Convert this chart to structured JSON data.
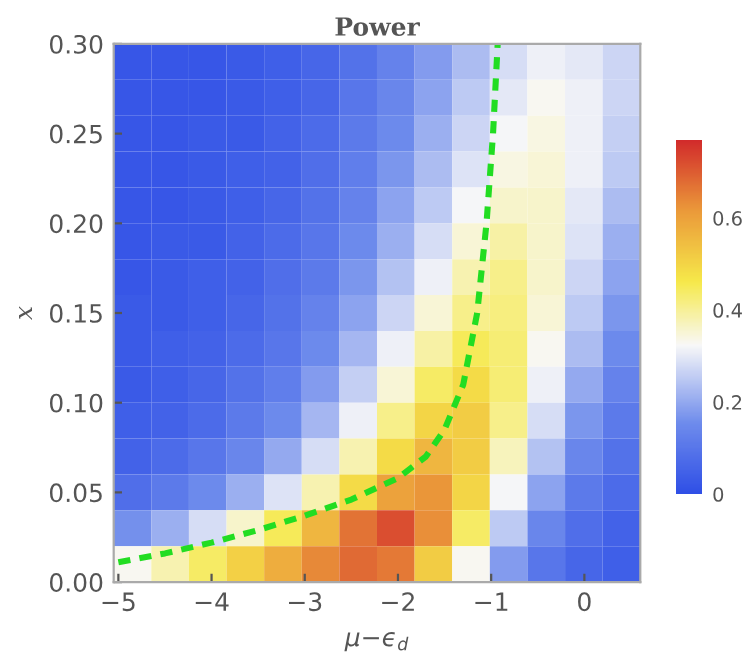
{
  "chart_data": {
    "type": "heatmap",
    "title": "Power",
    "xlabel": "μ−ϵ$_{d}$",
    "ylabel": "x",
    "xlim": [
      -5.05,
      0.6
    ],
    "ylim": [
      0,
      0.3
    ],
    "xticks": [
      {
        "value": -5,
        "label": "−5"
      },
      {
        "value": -4,
        "label": "−4"
      },
      {
        "value": -3,
        "label": "−3"
      },
      {
        "value": -2,
        "label": "−2"
      },
      {
        "value": -1,
        "label": "−1"
      },
      0
    ],
    "yticks": [
      {
        "value": 0,
        "label": "0.00"
      },
      {
        "value": 0.05,
        "label": "0.05"
      },
      {
        "value": 0.1,
        "label": "0.10"
      },
      {
        "value": 0.15,
        "label": "0.15"
      },
      {
        "value": 0.2,
        "label": "0.20"
      },
      {
        "value": 0.25,
        "label": "0.25"
      },
      {
        "value": 0.3,
        "label": "0.30"
      }
    ],
    "clim": [
      0,
      0.77
    ],
    "cticks": [
      0,
      0.2,
      0.4,
      0.6
    ],
    "cells": [
      [
        0.02,
        0.02,
        0.02,
        0.03,
        0.04,
        0.06,
        0.09,
        0.13,
        0.18,
        0.23,
        0.28,
        0.31,
        0.3,
        0.27
      ],
      [
        0.02,
        0.02,
        0.02,
        0.03,
        0.04,
        0.06,
        0.1,
        0.14,
        0.19,
        0.25,
        0.3,
        0.33,
        0.31,
        0.27
      ],
      [
        0.02,
        0.02,
        0.03,
        0.03,
        0.05,
        0.07,
        0.11,
        0.15,
        0.21,
        0.27,
        0.32,
        0.34,
        0.31,
        0.26
      ],
      [
        0.02,
        0.02,
        0.03,
        0.04,
        0.05,
        0.08,
        0.12,
        0.17,
        0.23,
        0.29,
        0.34,
        0.35,
        0.31,
        0.25
      ],
      [
        0.02,
        0.02,
        0.03,
        0.04,
        0.06,
        0.09,
        0.13,
        0.19,
        0.25,
        0.32,
        0.36,
        0.36,
        0.3,
        0.23
      ],
      [
        0.02,
        0.03,
        0.03,
        0.05,
        0.07,
        0.1,
        0.15,
        0.21,
        0.28,
        0.35,
        0.39,
        0.36,
        0.29,
        0.21
      ],
      [
        0.02,
        0.03,
        0.04,
        0.05,
        0.08,
        0.11,
        0.17,
        0.24,
        0.31,
        0.38,
        0.41,
        0.36,
        0.27,
        0.19
      ],
      [
        0.03,
        0.03,
        0.04,
        0.06,
        0.09,
        0.13,
        0.19,
        0.27,
        0.35,
        0.41,
        0.42,
        0.35,
        0.25,
        0.17
      ],
      [
        0.03,
        0.04,
        0.05,
        0.07,
        0.1,
        0.15,
        0.22,
        0.31,
        0.39,
        0.45,
        0.43,
        0.33,
        0.23,
        0.15
      ],
      [
        0.03,
        0.04,
        0.06,
        0.09,
        0.12,
        0.18,
        0.26,
        0.35,
        0.44,
        0.49,
        0.43,
        0.31,
        0.2,
        0.13
      ],
      [
        0.04,
        0.05,
        0.07,
        0.11,
        0.15,
        0.22,
        0.31,
        0.41,
        0.5,
        0.52,
        0.41,
        0.28,
        0.17,
        0.11
      ],
      [
        0.05,
        0.07,
        0.1,
        0.14,
        0.2,
        0.28,
        0.38,
        0.49,
        0.56,
        0.52,
        0.37,
        0.24,
        0.14,
        0.09
      ],
      [
        0.08,
        0.11,
        0.15,
        0.21,
        0.29,
        0.38,
        0.49,
        0.6,
        0.62,
        0.5,
        0.32,
        0.19,
        0.11,
        0.07
      ],
      [
        0.16,
        0.21,
        0.28,
        0.36,
        0.45,
        0.56,
        0.67,
        0.72,
        0.63,
        0.44,
        0.25,
        0.14,
        0.08,
        0.05
      ],
      [
        0.33,
        0.38,
        0.44,
        0.51,
        0.58,
        0.64,
        0.68,
        0.66,
        0.52,
        0.33,
        0.18,
        0.1,
        0.06,
        0.04
      ]
    ],
    "series": [
      {
        "type": "line",
        "color": "#22dd22",
        "line_style": "dashed",
        "x": [
          -5.0,
          -4.5,
          -4.0,
          -3.5,
          -3.0,
          -2.5,
          -2.0,
          -1.7,
          -1.5,
          -1.3,
          -1.15,
          -1.05,
          -0.98,
          -0.93
        ],
        "values": [
          0.011,
          0.016,
          0.022,
          0.029,
          0.037,
          0.046,
          0.058,
          0.07,
          0.085,
          0.11,
          0.15,
          0.2,
          0.25,
          0.3
        ]
      }
    ]
  }
}
